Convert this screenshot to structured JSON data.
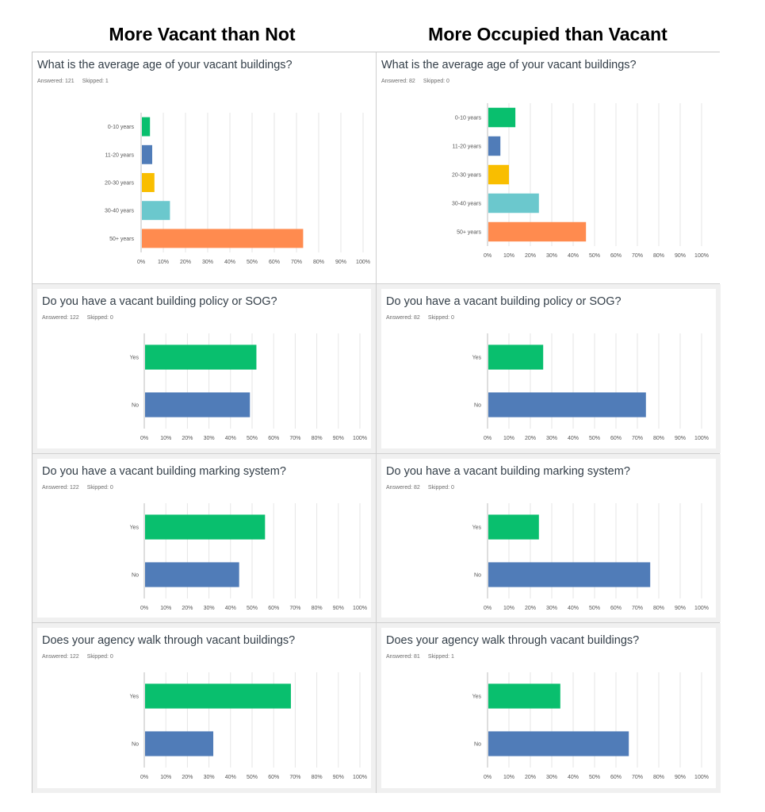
{
  "headers": {
    "left": "More Vacant than Not",
    "right": "More Occupied than Vacant"
  },
  "colors": {
    "green": "#09bf6e",
    "blue": "#507cb8",
    "yellow": "#f9be00",
    "teal": "#6bc8cd",
    "orange": "#ff8b4f",
    "gridline": "#e6e6e6",
    "cell_background": "#f0f0f0"
  },
  "panels": [
    {
      "title": "What is the average age of your vacant buildings?",
      "answered": "Answered: 121",
      "skipped": "Skipped: 1"
    },
    {
      "title": "What is the average age of your vacant buildings?",
      "answered": "Answered: 82",
      "skipped": "Skipped: 0"
    },
    {
      "title": "Do you have a vacant building policy or SOG?",
      "answered": "Answered: 122",
      "skipped": "Skipped: 0"
    },
    {
      "title": "Do you have a vacant building policy or SOG?",
      "answered": "Answered: 82",
      "skipped": "Skipped: 0"
    },
    {
      "title": "Do you have a vacant building marking system?",
      "answered": "Answered: 122",
      "skipped": "Skipped: 0"
    },
    {
      "title": "Do you have a vacant building marking system?",
      "answered": "Answered: 82",
      "skipped": "Skipped: 0"
    },
    {
      "title": "Does your agency walk through vacant buildings?",
      "answered": "Answered: 122",
      "skipped": "Skipped: 0"
    },
    {
      "title": "Does your agency walk through vacant buildings?",
      "answered": "Answered: 81",
      "skipped": "Skipped: 1"
    }
  ],
  "chart_data": [
    {
      "type": "bar",
      "orientation": "horizontal",
      "title": "What is the average age of your vacant buildings?",
      "categories": [
        "0-10 years",
        "11-20 years",
        "20-30 years",
        "30-40 years",
        "50+ years"
      ],
      "values": [
        4,
        5,
        6,
        13,
        73
      ],
      "bar_colors": [
        "green",
        "blue",
        "yellow",
        "teal",
        "orange"
      ],
      "x_ticks": [
        "0%",
        "10%",
        "20%",
        "30%",
        "40%",
        "50%",
        "60%",
        "70%",
        "80%",
        "90%",
        "100%"
      ],
      "xlim": [
        0,
        100
      ],
      "grid": true
    },
    {
      "type": "bar",
      "orientation": "horizontal",
      "title": "What is the average age of your vacant buildings?",
      "categories": [
        "0-10 years",
        "11-20 years",
        "20-30 years",
        "30-40 years",
        "50+ years"
      ],
      "values": [
        13,
        6,
        10,
        24,
        46
      ],
      "bar_colors": [
        "green",
        "blue",
        "yellow",
        "teal",
        "orange"
      ],
      "x_ticks": [
        "0%",
        "10%",
        "20%",
        "30%",
        "40%",
        "50%",
        "60%",
        "70%",
        "80%",
        "90%",
        "100%"
      ],
      "xlim": [
        0,
        100
      ],
      "grid": true
    },
    {
      "type": "bar",
      "orientation": "horizontal",
      "title": "Do you have a vacant building policy or SOG?",
      "categories": [
        "Yes",
        "No"
      ],
      "values": [
        52,
        49
      ],
      "bar_colors": [
        "green",
        "blue"
      ],
      "x_ticks": [
        "0%",
        "10%",
        "20%",
        "30%",
        "40%",
        "50%",
        "60%",
        "70%",
        "80%",
        "90%",
        "100%"
      ],
      "xlim": [
        0,
        100
      ],
      "grid": true
    },
    {
      "type": "bar",
      "orientation": "horizontal",
      "title": "Do you have a vacant building policy or SOG?",
      "categories": [
        "Yes",
        "No"
      ],
      "values": [
        26,
        74
      ],
      "bar_colors": [
        "green",
        "blue"
      ],
      "x_ticks": [
        "0%",
        "10%",
        "20%",
        "30%",
        "40%",
        "50%",
        "60%",
        "70%",
        "80%",
        "90%",
        "100%"
      ],
      "xlim": [
        0,
        100
      ],
      "grid": true
    },
    {
      "type": "bar",
      "orientation": "horizontal",
      "title": "Do you have a vacant building marking system?",
      "categories": [
        "Yes",
        "No"
      ],
      "values": [
        56,
        44
      ],
      "bar_colors": [
        "green",
        "blue"
      ],
      "x_ticks": [
        "0%",
        "10%",
        "20%",
        "30%",
        "40%",
        "50%",
        "60%",
        "70%",
        "80%",
        "90%",
        "100%"
      ],
      "xlim": [
        0,
        100
      ],
      "grid": true
    },
    {
      "type": "bar",
      "orientation": "horizontal",
      "title": "Do you have a vacant building marking system?",
      "categories": [
        "Yes",
        "No"
      ],
      "values": [
        24,
        76
      ],
      "bar_colors": [
        "green",
        "blue"
      ],
      "x_ticks": [
        "0%",
        "10%",
        "20%",
        "30%",
        "40%",
        "50%",
        "60%",
        "70%",
        "80%",
        "90%",
        "100%"
      ],
      "xlim": [
        0,
        100
      ],
      "grid": true
    },
    {
      "type": "bar",
      "orientation": "horizontal",
      "title": "Does your agency walk through vacant buildings?",
      "categories": [
        "Yes",
        "No"
      ],
      "values": [
        68,
        32
      ],
      "bar_colors": [
        "green",
        "blue"
      ],
      "x_ticks": [
        "0%",
        "10%",
        "20%",
        "30%",
        "40%",
        "50%",
        "60%",
        "70%",
        "80%",
        "90%",
        "100%"
      ],
      "xlim": [
        0,
        100
      ],
      "grid": true
    },
    {
      "type": "bar",
      "orientation": "horizontal",
      "title": "Does your agency walk through vacant buildings?",
      "categories": [
        "Yes",
        "No"
      ],
      "values": [
        34,
        66
      ],
      "bar_colors": [
        "green",
        "blue"
      ],
      "x_ticks": [
        "0%",
        "10%",
        "20%",
        "30%",
        "40%",
        "50%",
        "60%",
        "70%",
        "80%",
        "90%",
        "100%"
      ],
      "xlim": [
        0,
        100
      ],
      "grid": true
    }
  ]
}
